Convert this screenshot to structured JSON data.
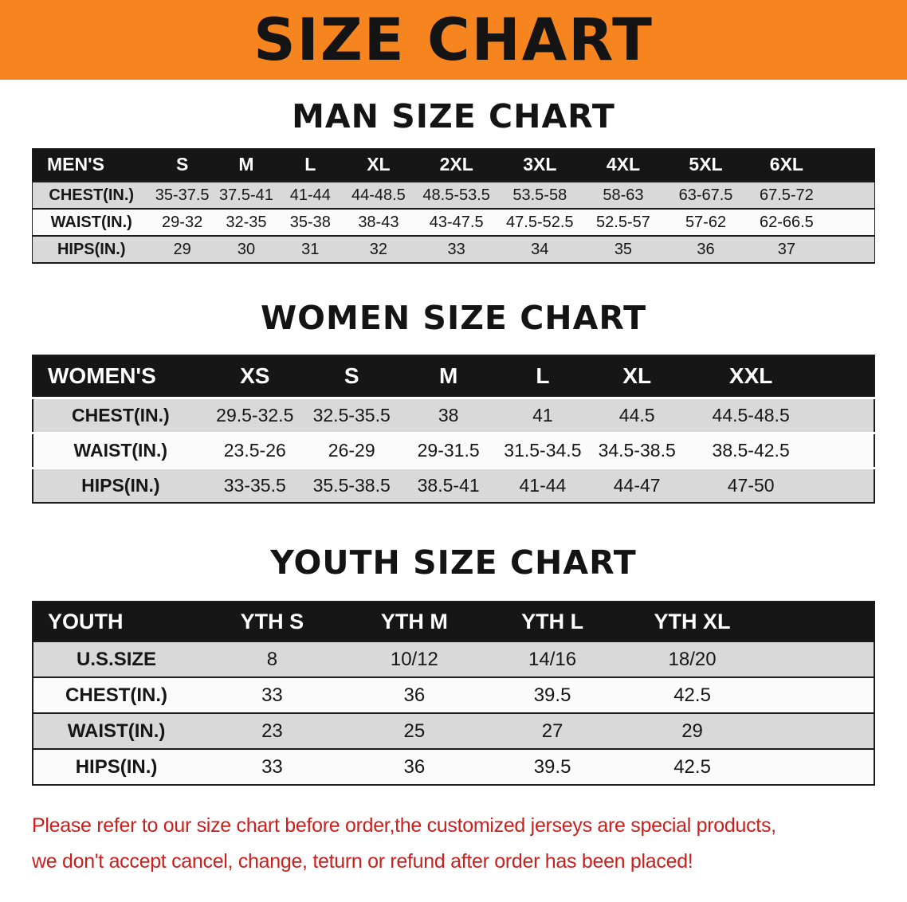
{
  "banner": {
    "title": "SIZE CHART"
  },
  "colors": {
    "banner_bg": "#f6851f",
    "header_bg": "#161616",
    "row_shade": "#d9d9d9",
    "row_plain": "#fbfbfb",
    "note_red": "#c9201d"
  },
  "chart_data": [
    {
      "type": "table",
      "title": "MAN SIZE CHART",
      "columns": [
        "MEN'S",
        "S",
        "M",
        "L",
        "XL",
        "2XL",
        "3XL",
        "4XL",
        "5XL",
        "6XL"
      ],
      "col_widths": [
        "14%",
        "7.6%",
        "7.6%",
        "7.6%",
        "8.6%",
        "9.9%",
        "9.9%",
        "9.9%",
        "9.7%",
        "15.2%"
      ],
      "rows": [
        [
          "CHEST(IN.)",
          "35-37.5",
          "37.5-41",
          "41-44",
          "44-48.5",
          "48.5-53.5",
          "53.5-58",
          "58-63",
          "63-67.5",
          "67.5-72"
        ],
        [
          "WAIST(IN.)",
          "29-32",
          "32-35",
          "35-38",
          "38-43",
          "43-47.5",
          "47.5-52.5",
          "52.5-57",
          "57-62",
          "62-66.5"
        ],
        [
          "HIPS(IN.)",
          "29",
          "30",
          "31",
          "32",
          "33",
          "34",
          "35",
          "36",
          "37"
        ]
      ]
    },
    {
      "type": "table",
      "title": "WOMEN SIZE CHART",
      "columns": [
        "WOMEN'S",
        "XS",
        "S",
        "M",
        "L",
        "XL",
        "XXL"
      ],
      "col_widths": [
        "20.8%",
        "11.2%",
        "11.8%",
        "11.2%",
        "11.2%",
        "11.2%",
        "22.6%"
      ],
      "rows": [
        [
          "CHEST(IN.)",
          "29.5-32.5",
          "32.5-35.5",
          "38",
          "41",
          "44.5",
          "44.5-48.5"
        ],
        [
          "WAIST(IN.)",
          "23.5-26",
          "26-29",
          "29-31.5",
          "31.5-34.5",
          "34.5-38.5",
          "38.5-42.5"
        ],
        [
          "HIPS(IN.)",
          "33-35.5",
          "35.5-38.5",
          "38.5-41",
          "41-44",
          "44-47",
          "47-50"
        ]
      ]
    },
    {
      "type": "table",
      "title": "YOUTH SIZE CHART",
      "columns": [
        "YOUTH",
        "YTH S",
        "YTH M",
        "YTH L",
        "YTH XL"
      ],
      "col_widths": [
        "19.8%",
        "17.3%",
        "16.5%",
        "16.3%",
        "30.1%"
      ],
      "rows": [
        [
          "U.S.SIZE",
          "8",
          "10/12",
          "14/16",
          "18/20"
        ],
        [
          "CHEST(IN.)",
          "33",
          "36",
          "39.5",
          "42.5"
        ],
        [
          "WAIST(IN.)",
          "23",
          "25",
          "27",
          "29"
        ],
        [
          "HIPS(IN.)",
          "33",
          "36",
          "39.5",
          "42.5"
        ]
      ]
    }
  ],
  "note": {
    "line1": "Please refer to our size chart before order,the customized jerseys are special products,",
    "line2": "we don't accept cancel, change, teturn or refund after order has been placed!"
  }
}
